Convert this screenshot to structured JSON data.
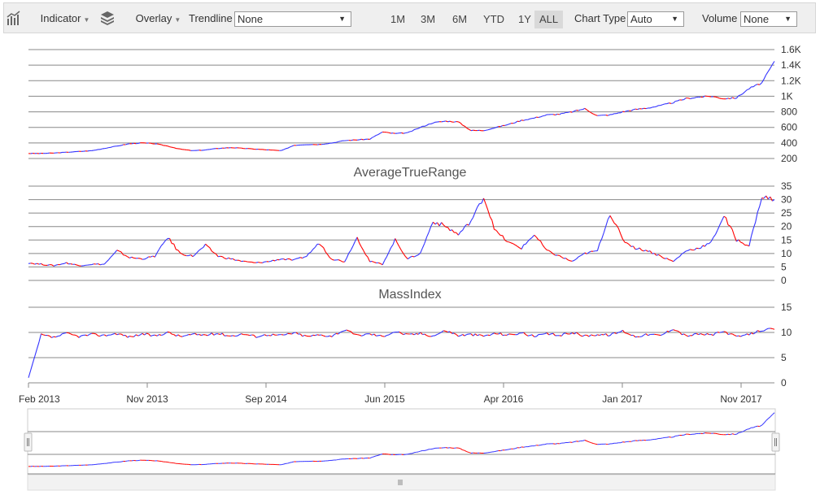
{
  "toolbar": {
    "indicator_label": "Indicator",
    "overlay_label": "Overlay",
    "trendline_label": "Trendline",
    "trendline_value": "None",
    "ranges": [
      "1M",
      "3M",
      "6M",
      "YTD",
      "1Y",
      "ALL"
    ],
    "active_range": "ALL",
    "chart_type_label": "Chart Type",
    "chart_type_value": "Auto",
    "volume_label": "Volume",
    "volume_value": "None",
    "icons": {
      "indicator": "bar-chart-trend-icon",
      "overlay": "layers-icon",
      "dropdown": "caret-down-icon"
    }
  },
  "chart_data": [
    {
      "type": "line",
      "title": "",
      "y_ticks": [
        "200",
        "400",
        "600",
        "800",
        "1K",
        "1.2K",
        "1.4K",
        "1.6K"
      ],
      "ylim": [
        200,
        1600
      ],
      "x_ticks": [
        "Feb 2013",
        "Nov 2013",
        "Sep 2014",
        "Jun 2015",
        "Apr 2016",
        "Jan 2017",
        "Nov 2017"
      ],
      "x_range": [
        "Feb 2013",
        "Jan 2018"
      ],
      "colors": {
        "up": "#3333ff",
        "down": "#ff0000"
      },
      "values": [
        265,
        265,
        270,
        280,
        290,
        300,
        330,
        360,
        390,
        400,
        390,
        360,
        320,
        300,
        310,
        330,
        340,
        330,
        320,
        310,
        300,
        370,
        380,
        380,
        400,
        430,
        440,
        450,
        540,
        520,
        530,
        600,
        660,
        680,
        670,
        560,
        560,
        600,
        640,
        690,
        720,
        760,
        770,
        800,
        840,
        750,
        760,
        800,
        830,
        850,
        880,
        920,
        970,
        990,
        1000,
        970,
        980,
        1100,
        1170,
        1450
      ]
    },
    {
      "type": "line",
      "title": "AverageTrueRange",
      "y_ticks": [
        "0",
        "5",
        "10",
        "15",
        "20",
        "25",
        "30",
        "35"
      ],
      "ylim": [
        0,
        35
      ],
      "values": [
        6.5,
        6,
        5.5,
        6.5,
        5.5,
        6,
        6,
        11,
        8.5,
        8,
        9,
        16,
        10,
        9,
        13,
        9,
        8,
        7,
        6.5,
        7,
        8,
        7.5,
        9,
        14,
        8,
        7,
        16,
        7,
        6,
        15,
        8,
        10,
        22,
        20,
        17,
        22,
        31,
        18,
        14,
        12,
        17,
        11,
        9,
        7,
        10,
        11,
        25,
        15,
        12,
        11,
        9,
        7,
        11,
        12,
        14,
        24,
        15,
        13,
        31,
        30
      ]
    },
    {
      "type": "line",
      "title": "MassIndex",
      "y_ticks": [
        "0",
        "5",
        "10",
        "15"
      ],
      "ylim": [
        0,
        15
      ],
      "values": [
        1,
        9.5,
        9,
        9.8,
        9.2,
        9.6,
        9.4,
        9.8,
        9.1,
        9.7,
        9.3,
        10,
        9.2,
        9.6,
        9.5,
        9.8,
        9.3,
        9.7,
        9.2,
        9.6,
        9.4,
        9.9,
        9.2,
        9.5,
        9.3,
        10.5,
        9.4,
        9.7,
        9.2,
        10.2,
        9.5,
        9.8,
        9.3,
        10.4,
        9.4,
        9.6,
        9.3,
        9.8,
        9.5,
        9.9,
        9.2,
        9.7,
        9.4,
        10,
        9.3,
        9.6,
        9.5,
        10.3,
        9.2,
        9.6,
        9.4,
        10.8,
        9.3,
        9.7,
        9.5,
        10.2,
        9.1,
        9.6,
        10.5,
        10.6
      ]
    }
  ]
}
